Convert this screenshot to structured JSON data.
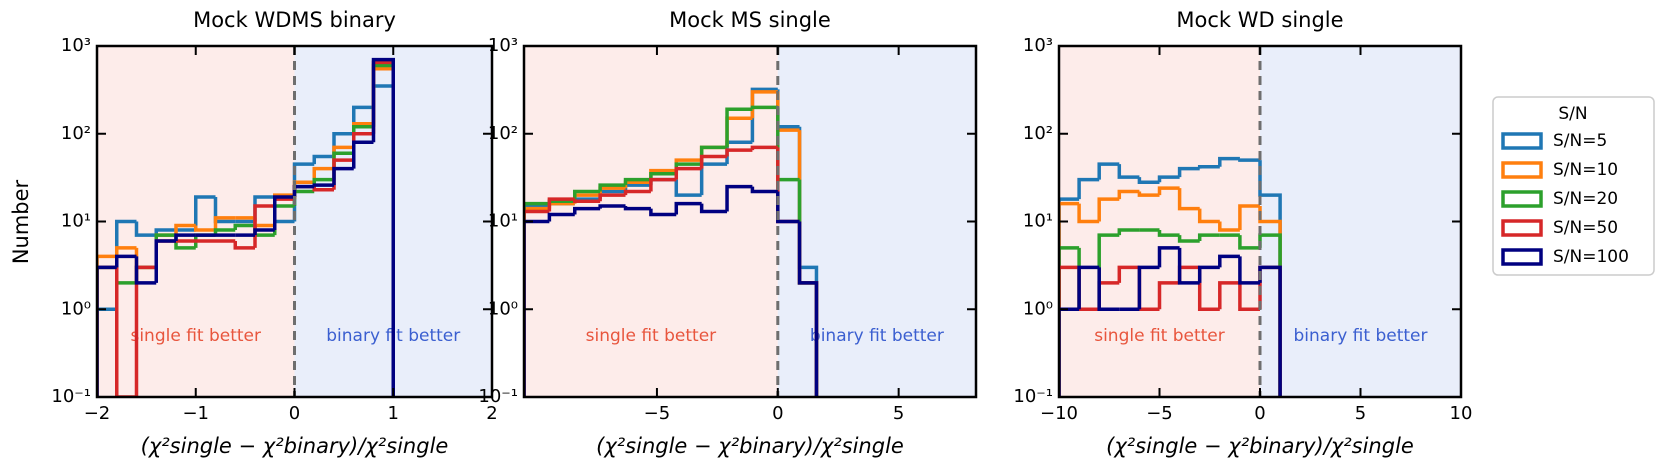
{
  "chart_data": [
    {
      "type": "histogram",
      "title": "Mock WDMS binary",
      "ylabel": "Number",
      "xlabel": "(χ²single − χ²binary)/χ²single",
      "log_y": true,
      "legend_title": "S/N",
      "legend": "outside right",
      "xlim": [
        -2,
        2
      ],
      "xticks": [
        {
          "value": -2,
          "label": "−2"
        },
        {
          "value": -1,
          "label": "−1"
        },
        0,
        1,
        2
      ],
      "ylim": [
        0.1,
        1000
      ],
      "yticks": [
        {
          "value": 0.1,
          "label": "10⁻¹"
        },
        {
          "value": 1,
          "label": "10⁰"
        },
        {
          "value": 10,
          "label": "10¹"
        },
        {
          "value": 100,
          "label": "10²"
        },
        {
          "value": 1000,
          "label": "10³"
        }
      ],
      "vline": 0,
      "annotations": [
        "single fit better",
        "binary fit better"
      ],
      "bins": [
        -2,
        -1.8,
        -1.6,
        -1.4,
        -1.2,
        -1,
        -0.8,
        -0.6,
        -0.4,
        -0.2,
        0,
        0.2,
        0.4,
        0.6,
        0.8,
        1
      ],
      "series": [
        {
          "name": "S/N=5",
          "color": "#1f77b4",
          "values": [
            1,
            10,
            7,
            8,
            8,
            19,
            10,
            10,
            19,
            10,
            45,
            55,
            100,
            200,
            350
          ]
        },
        {
          "name": "S/N=10",
          "color": "#ff7f0e",
          "values": [
            4,
            5,
            3,
            7,
            9,
            8,
            11,
            11,
            9,
            20,
            28,
            40,
            70,
            130,
            550
          ]
        },
        {
          "name": "S/N=20",
          "color": "#2ca02c",
          "values": [
            3,
            2,
            3,
            7,
            5,
            7,
            8,
            9,
            7,
            15,
            22,
            30,
            60,
            120,
            600
          ]
        },
        {
          "name": "S/N=50",
          "color": "#d62728",
          "values": [
            3,
            0,
            3,
            6,
            6,
            6,
            6,
            5,
            15,
            18,
            25,
            23,
            50,
            100,
            650
          ]
        },
        {
          "name": "S/N=100",
          "color": "#000080",
          "values": [
            3,
            4,
            2,
            6,
            7,
            7,
            7,
            7,
            8,
            19,
            25,
            26,
            40,
            80,
            700
          ]
        }
      ]
    },
    {
      "type": "histogram",
      "title": "Mock MS single",
      "xlabel": "(χ²single − χ²binary)/χ²single",
      "log_y": true,
      "xlim": [
        -10.5,
        8.2
      ],
      "xticks": [
        {
          "value": -5,
          "label": "−5"
        },
        0,
        5
      ],
      "ylim": [
        0.1,
        1000
      ],
      "yticks": [
        {
          "value": 0.1,
          "label": "10⁻¹"
        },
        {
          "value": 1,
          "label": "10⁰"
        },
        {
          "value": 10,
          "label": "10¹"
        },
        {
          "value": 100,
          "label": "10²"
        },
        {
          "value": 1000,
          "label": "10³"
        }
      ],
      "vline": 0,
      "annotations": [
        "single fit better",
        "binary fit better"
      ],
      "bins": [
        -10.5,
        -9.45,
        -8.4,
        -7.35,
        -6.3,
        -5.25,
        -4.2,
        -3.15,
        -2.1,
        -1.05,
        0,
        0.9,
        1.6
      ],
      "series": [
        {
          "name": "S/N=5",
          "color": "#1f77b4",
          "values": [
            15,
            16,
            18,
            22,
            26,
            30,
            20,
            45,
            80,
            320,
            120,
            3
          ]
        },
        {
          "name": "S/N=10",
          "color": "#ff7f0e",
          "values": [
            14,
            16,
            20,
            24,
            28,
            38,
            50,
            70,
            150,
            300,
            110,
            2
          ]
        },
        {
          "name": "S/N=20",
          "color": "#2ca02c",
          "values": [
            16,
            17,
            22,
            26,
            30,
            35,
            45,
            70,
            190,
            200,
            30,
            2
          ]
        },
        {
          "name": "S/N=50",
          "color": "#d62728",
          "values": [
            13,
            18,
            17,
            20,
            22,
            30,
            40,
            55,
            65,
            70,
            10,
            2
          ]
        },
        {
          "name": "S/N=100",
          "color": "#000080",
          "values": [
            10,
            12,
            14,
            15,
            14,
            12,
            16,
            13,
            25,
            22,
            10,
            2
          ]
        }
      ]
    },
    {
      "type": "histogram",
      "title": "Mock WD single",
      "xlabel": "(χ²single − χ²binary)/χ²single",
      "log_y": true,
      "xlim": [
        -10,
        10
      ],
      "xticks": [
        {
          "value": -10,
          "label": "−10"
        },
        {
          "value": -5,
          "label": "−5"
        },
        0,
        5,
        10
      ],
      "ylim": [
        0.1,
        1000
      ],
      "yticks": [
        {
          "value": 0.1,
          "label": "10⁻¹"
        },
        {
          "value": 1,
          "label": "10⁰"
        },
        {
          "value": 10,
          "label": "10¹"
        },
        {
          "value": 100,
          "label": "10²"
        },
        {
          "value": 1000,
          "label": "10³"
        }
      ],
      "vline": 0,
      "annotations": [
        "single fit better",
        "binary fit better"
      ],
      "bins": [
        -10,
        -9,
        -8,
        -7,
        -6,
        -5,
        -4,
        -3,
        -2,
        -1,
        0,
        1
      ],
      "series": [
        {
          "name": "S/N=5",
          "color": "#1f77b4",
          "values": [
            18,
            30,
            45,
            32,
            28,
            32,
            40,
            42,
            52,
            50,
            20
          ]
        },
        {
          "name": "S/N=10",
          "color": "#ff7f0e",
          "values": [
            16,
            10,
            18,
            22,
            20,
            24,
            14,
            10,
            8,
            15,
            10
          ]
        },
        {
          "name": "S/N=20",
          "color": "#2ca02c",
          "values": [
            5,
            1,
            7,
            8,
            8,
            7,
            6,
            7,
            7,
            5,
            7
          ]
        },
        {
          "name": "S/N=50",
          "color": "#d62728",
          "values": [
            3,
            1,
            2,
            3,
            1,
            2,
            3,
            1,
            2,
            1,
            3
          ]
        },
        {
          "name": "S/N=100",
          "color": "#000080",
          "values": [
            1,
            3,
            1,
            1,
            3,
            5,
            2,
            3,
            4,
            2,
            3
          ]
        }
      ]
    }
  ]
}
